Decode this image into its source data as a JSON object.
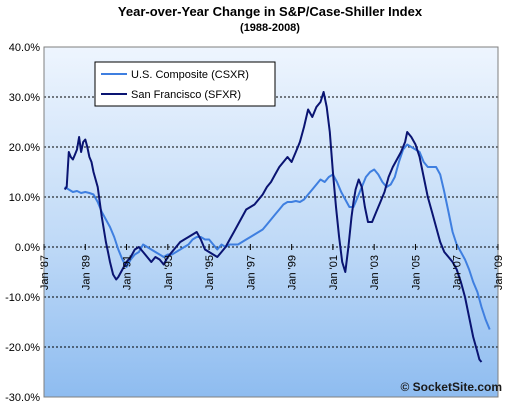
{
  "chart_data": {
    "type": "line",
    "title": "Year-over-Year Change in S&P/Case-Shiller Index",
    "subtitle": "(1988-2008)",
    "xlabel": "",
    "ylabel": "",
    "ylim": [
      -30,
      40
    ],
    "y_ticks": [
      {
        "value": 40,
        "label": "40.0%"
      },
      {
        "value": 30,
        "label": "30.0%"
      },
      {
        "value": 20,
        "label": "20.0%"
      },
      {
        "value": 10,
        "label": "10.0%"
      },
      {
        "value": 0,
        "label": "0.0%"
      },
      {
        "value": -10,
        "label": "-10.0%"
      },
      {
        "value": -20,
        "label": "-20.0%"
      },
      {
        "value": -30,
        "label": "-30.0%"
      }
    ],
    "xlim": [
      1987.0,
      2009.0
    ],
    "x_ticks": [
      {
        "value": 1987,
        "label": "Jan '87"
      },
      {
        "value": 1989,
        "label": "Jan '89"
      },
      {
        "value": 1991,
        "label": "Jan '91"
      },
      {
        "value": 1993,
        "label": "Jan '93"
      },
      {
        "value": 1995,
        "label": "Jan '95"
      },
      {
        "value": 1997,
        "label": "Jan '97"
      },
      {
        "value": 1999,
        "label": "Jan '99"
      },
      {
        "value": 2001,
        "label": "Jan '01"
      },
      {
        "value": 2003,
        "label": "Jan '03"
      },
      {
        "value": 2005,
        "label": "Jan '05"
      },
      {
        "value": 2007,
        "label": "Jan '07"
      },
      {
        "value": 2009,
        "label": "Jan '09"
      }
    ],
    "gridlines": true,
    "legend_position": "top-left",
    "series": [
      {
        "name": "U.S. Composite (CSXR)",
        "color": "#3f7fe0",
        "points": [
          [
            1988.0,
            12
          ],
          [
            1988.2,
            11.5
          ],
          [
            1988.4,
            11
          ],
          [
            1988.6,
            11.2
          ],
          [
            1988.8,
            10.8
          ],
          [
            1989.0,
            11
          ],
          [
            1989.2,
            10.8
          ],
          [
            1989.4,
            10.5
          ],
          [
            1989.6,
            9
          ],
          [
            1989.8,
            7
          ],
          [
            1990.0,
            5.5
          ],
          [
            1990.2,
            4
          ],
          [
            1990.4,
            2
          ],
          [
            1990.6,
            -0.5
          ],
          [
            1990.8,
            -2.5
          ],
          [
            1991.0,
            -4
          ],
          [
            1991.2,
            -2.5
          ],
          [
            1991.4,
            -1.5
          ],
          [
            1991.6,
            -1
          ],
          [
            1991.8,
            0.5
          ],
          [
            1992.0,
            0
          ],
          [
            1992.2,
            -0.5
          ],
          [
            1992.4,
            -1
          ],
          [
            1992.6,
            -1.5
          ],
          [
            1992.8,
            -2
          ],
          [
            1993.0,
            -1.5
          ],
          [
            1993.2,
            -1.5
          ],
          [
            1993.4,
            -1
          ],
          [
            1993.6,
            -0.5
          ],
          [
            1993.8,
            0
          ],
          [
            1994.0,
            0.5
          ],
          [
            1994.2,
            1.5
          ],
          [
            1994.4,
            2
          ],
          [
            1994.6,
            2
          ],
          [
            1994.8,
            1.5
          ],
          [
            1995.0,
            1.5
          ],
          [
            1995.2,
            0.5
          ],
          [
            1995.4,
            -0.5
          ],
          [
            1995.6,
            0.5
          ],
          [
            1995.8,
            0
          ],
          [
            1996.0,
            0.5
          ],
          [
            1996.2,
            0.5
          ],
          [
            1996.4,
            0.5
          ],
          [
            1996.6,
            1
          ],
          [
            1996.8,
            1.5
          ],
          [
            1997.0,
            2
          ],
          [
            1997.2,
            2.5
          ],
          [
            1997.4,
            3
          ],
          [
            1997.6,
            3.5
          ],
          [
            1997.8,
            4.5
          ],
          [
            1998.0,
            5.5
          ],
          [
            1998.2,
            6.5
          ],
          [
            1998.4,
            7.5
          ],
          [
            1998.6,
            8.5
          ],
          [
            1998.8,
            9
          ],
          [
            1999.0,
            9
          ],
          [
            1999.2,
            9.2
          ],
          [
            1999.4,
            9
          ],
          [
            1999.6,
            9.5
          ],
          [
            1999.8,
            10.5
          ],
          [
            2000.0,
            11.5
          ],
          [
            2000.2,
            12.5
          ],
          [
            2000.4,
            13.5
          ],
          [
            2000.6,
            13
          ],
          [
            2000.8,
            14
          ],
          [
            2001.0,
            14.5
          ],
          [
            2001.2,
            13
          ],
          [
            2001.4,
            11
          ],
          [
            2001.6,
            9.5
          ],
          [
            2001.8,
            8
          ],
          [
            2002.0,
            8
          ],
          [
            2002.2,
            10
          ],
          [
            2002.4,
            12
          ],
          [
            2002.6,
            14
          ],
          [
            2002.8,
            15
          ],
          [
            2003.0,
            15.5
          ],
          [
            2003.2,
            14.5
          ],
          [
            2003.4,
            13
          ],
          [
            2003.6,
            12
          ],
          [
            2003.8,
            12.5
          ],
          [
            2004.0,
            14
          ],
          [
            2004.2,
            17
          ],
          [
            2004.4,
            19.5
          ],
          [
            2004.6,
            20.5
          ],
          [
            2004.8,
            20
          ],
          [
            2005.0,
            19.5
          ],
          [
            2005.2,
            19
          ],
          [
            2005.4,
            17
          ],
          [
            2005.6,
            16
          ],
          [
            2005.8,
            16
          ],
          [
            2006.0,
            16
          ],
          [
            2006.2,
            14.5
          ],
          [
            2006.4,
            11
          ],
          [
            2006.6,
            7
          ],
          [
            2006.8,
            3
          ],
          [
            2007.0,
            0.5
          ],
          [
            2007.2,
            -1
          ],
          [
            2007.4,
            -2.5
          ],
          [
            2007.6,
            -4.5
          ],
          [
            2007.8,
            -7
          ],
          [
            2008.0,
            -9
          ],
          [
            2008.2,
            -12
          ],
          [
            2008.4,
            -14.5
          ],
          [
            2008.6,
            -16.5
          ]
        ]
      },
      {
        "name": "San Francisco (SFXR)",
        "color": "#0a1472",
        "points": [
          [
            1988.0,
            11.5
          ],
          [
            1988.1,
            12
          ],
          [
            1988.2,
            19
          ],
          [
            1988.3,
            18
          ],
          [
            1988.4,
            17.5
          ],
          [
            1988.5,
            18.5
          ],
          [
            1988.6,
            19.5
          ],
          [
            1988.7,
            22
          ],
          [
            1988.8,
            19
          ],
          [
            1988.9,
            21
          ],
          [
            1989.0,
            21.5
          ],
          [
            1989.1,
            20
          ],
          [
            1989.2,
            18
          ],
          [
            1989.3,
            17
          ],
          [
            1989.4,
            15
          ],
          [
            1989.6,
            12
          ],
          [
            1989.8,
            6
          ],
          [
            1990.0,
            1
          ],
          [
            1990.1,
            -1
          ],
          [
            1990.2,
            -3
          ],
          [
            1990.35,
            -5.5
          ],
          [
            1990.5,
            -6.5
          ],
          [
            1990.6,
            -6
          ],
          [
            1990.8,
            -4.5
          ],
          [
            1991.0,
            -3
          ],
          [
            1991.2,
            -2
          ],
          [
            1991.4,
            -0.5
          ],
          [
            1991.6,
            0
          ],
          [
            1991.8,
            -1
          ],
          [
            1992.0,
            -2
          ],
          [
            1992.2,
            -3
          ],
          [
            1992.4,
            -2
          ],
          [
            1992.6,
            -2.5
          ],
          [
            1992.8,
            -3.5
          ],
          [
            1993.0,
            -2
          ],
          [
            1993.2,
            -1
          ],
          [
            1993.4,
            0
          ],
          [
            1993.6,
            1
          ],
          [
            1993.8,
            1.5
          ],
          [
            1994.0,
            2
          ],
          [
            1994.2,
            2.5
          ],
          [
            1994.4,
            3
          ],
          [
            1994.6,
            1.5
          ],
          [
            1994.8,
            -0.5
          ],
          [
            1995.0,
            -1
          ],
          [
            1995.2,
            -1.5
          ],
          [
            1995.4,
            -2
          ],
          [
            1995.6,
            -1
          ],
          [
            1995.8,
            0
          ],
          [
            1996.0,
            1.5
          ],
          [
            1996.2,
            3
          ],
          [
            1996.4,
            4.5
          ],
          [
            1996.6,
            6
          ],
          [
            1996.8,
            7.5
          ],
          [
            1997.0,
            8
          ],
          [
            1997.2,
            8.5
          ],
          [
            1997.4,
            9.5
          ],
          [
            1997.6,
            10.5
          ],
          [
            1997.8,
            12
          ],
          [
            1998.0,
            13
          ],
          [
            1998.2,
            14.5
          ],
          [
            1998.4,
            16
          ],
          [
            1998.6,
            17
          ],
          [
            1998.8,
            18
          ],
          [
            1999.0,
            17
          ],
          [
            1999.2,
            19
          ],
          [
            1999.4,
            21
          ],
          [
            1999.6,
            24
          ],
          [
            1999.8,
            27.5
          ],
          [
            2000.0,
            26
          ],
          [
            2000.2,
            28
          ],
          [
            2000.4,
            29
          ],
          [
            2000.55,
            31
          ],
          [
            2000.7,
            28
          ],
          [
            2000.85,
            23
          ],
          [
            2001.0,
            15
          ],
          [
            2001.15,
            8
          ],
          [
            2001.3,
            2
          ],
          [
            2001.45,
            -3
          ],
          [
            2001.6,
            -5
          ],
          [
            2001.75,
            0
          ],
          [
            2001.9,
            6
          ],
          [
            2002.0,
            9
          ],
          [
            2002.1,
            11.5
          ],
          [
            2002.25,
            13.5
          ],
          [
            2002.4,
            12
          ],
          [
            2002.55,
            8
          ],
          [
            2002.7,
            5
          ],
          [
            2002.9,
            5
          ],
          [
            2003.1,
            7
          ],
          [
            2003.3,
            9
          ],
          [
            2003.5,
            11
          ],
          [
            2003.7,
            14
          ],
          [
            2003.9,
            16
          ],
          [
            2004.1,
            17.5
          ],
          [
            2004.3,
            19
          ],
          [
            2004.5,
            21
          ],
          [
            2004.6,
            23
          ],
          [
            2004.8,
            22
          ],
          [
            2005.0,
            20.5
          ],
          [
            2005.2,
            18
          ],
          [
            2005.4,
            14
          ],
          [
            2005.6,
            10
          ],
          [
            2005.8,
            7
          ],
          [
            2006.0,
            4
          ],
          [
            2006.2,
            1
          ],
          [
            2006.4,
            -1
          ],
          [
            2006.6,
            -2
          ],
          [
            2006.8,
            -3
          ],
          [
            2007.0,
            -4.5
          ],
          [
            2007.2,
            -7
          ],
          [
            2007.4,
            -10
          ],
          [
            2007.6,
            -14
          ],
          [
            2007.8,
            -18
          ],
          [
            2008.0,
            -21
          ],
          [
            2008.1,
            -22.5
          ],
          [
            2008.2,
            -23
          ]
        ]
      }
    ],
    "watermark": "© SocketSite.com"
  }
}
